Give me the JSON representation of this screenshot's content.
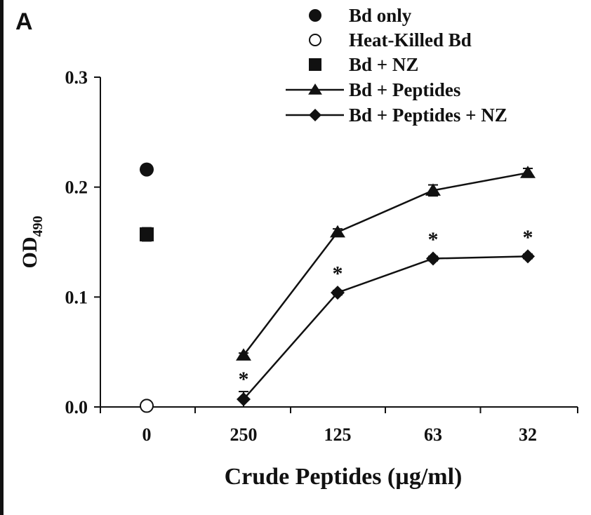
{
  "panel_label": "A",
  "colors": {
    "ink": "#111111",
    "background": "#ffffff"
  },
  "chart_data": {
    "type": "line",
    "categories": [
      "0",
      "250",
      "125",
      "63",
      "32"
    ],
    "xlabel": "Crude Peptides (µg/ml)",
    "ylabel_main": "OD",
    "ylabel_sub": "490",
    "ylim": [
      0,
      0.3
    ],
    "yticks": [
      "0.0",
      "0.1",
      "0.2",
      "0.3"
    ],
    "legend_position": "top-right",
    "series": [
      {
        "name": "Bd only",
        "marker": "circle-filled",
        "line": false,
        "points": [
          {
            "x": "0",
            "y": 0.216
          }
        ]
      },
      {
        "name": "Heat-Killed Bd",
        "marker": "circle-open",
        "line": false,
        "points": [
          {
            "x": "0",
            "y": 0.001
          }
        ]
      },
      {
        "name": "Bd + NZ",
        "marker": "square-filled",
        "line": false,
        "points": [
          {
            "x": "0",
            "y": 0.157,
            "err": 0.006
          }
        ]
      },
      {
        "name": "Bd + Peptides",
        "marker": "triangle-filled",
        "line": true,
        "points": [
          {
            "x": "250",
            "y": 0.047,
            "err": 0.002
          },
          {
            "x": "125",
            "y": 0.159,
            "err": 0.003
          },
          {
            "x": "63",
            "y": 0.197,
            "err": 0.005
          },
          {
            "x": "32",
            "y": 0.213,
            "err": 0.004
          }
        ]
      },
      {
        "name": "Bd + Peptides + NZ",
        "marker": "diamond-filled",
        "line": true,
        "points": [
          {
            "x": "250",
            "y": 0.007,
            "err": 0.007
          },
          {
            "x": "125",
            "y": 0.104,
            "err": 0.002
          },
          {
            "x": "63",
            "y": 0.135,
            "err": 0.002
          },
          {
            "x": "32",
            "y": 0.137,
            "err": 0.002
          }
        ]
      }
    ],
    "annotations": [
      {
        "text": "*",
        "x": "250",
        "y": 0.028
      },
      {
        "text": "*",
        "x": "125",
        "y": 0.124
      },
      {
        "text": "*",
        "x": "63",
        "y": 0.155
      },
      {
        "text": "*",
        "x": "32",
        "y": 0.157
      }
    ]
  }
}
